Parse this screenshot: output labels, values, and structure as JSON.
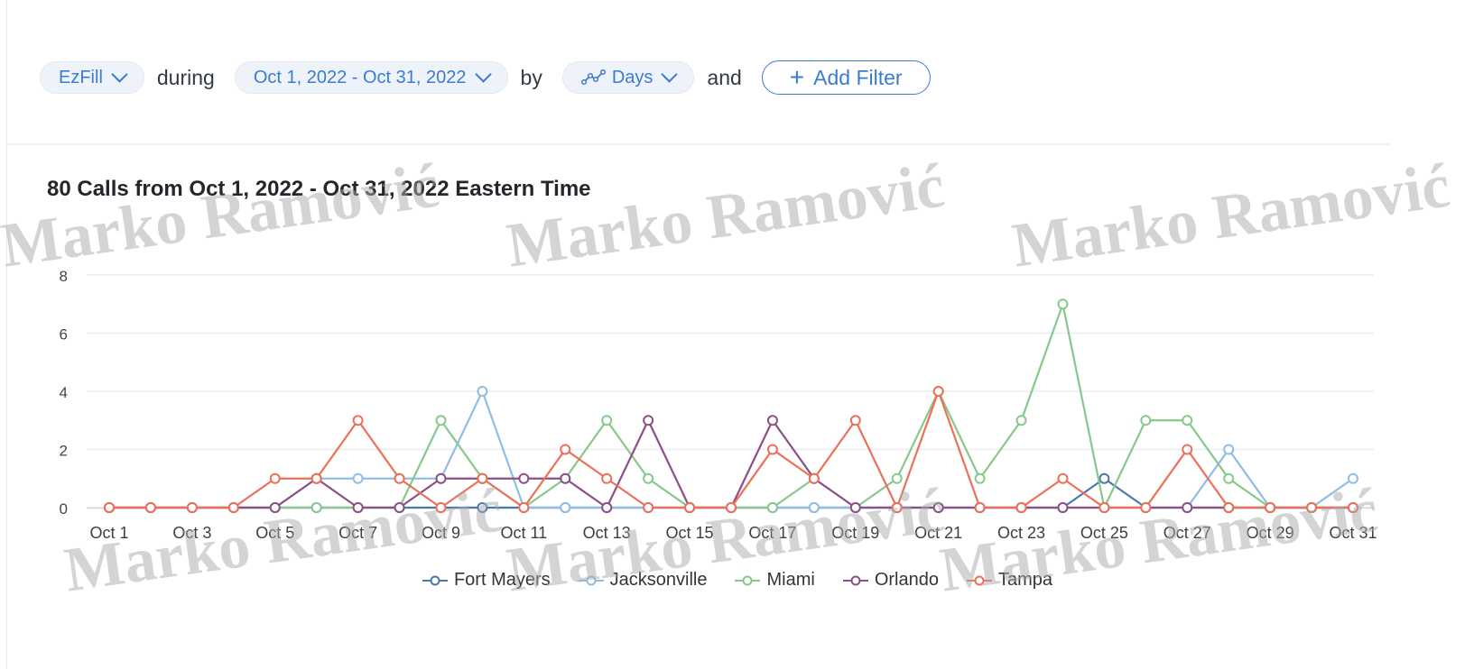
{
  "filters": {
    "product": "EzFill",
    "during_label": "during",
    "date_range": "Oct 1, 2022 - Oct 31, 2022",
    "by_label": "by",
    "granularity": "Days",
    "and_label": "and",
    "add_filter": "Add Filter"
  },
  "watermark": "Marko Ramović",
  "colors": {
    "accent": "#3b7bd1",
    "Fort Mayers": "#4a78ad",
    "Jacksonville": "#8fbde6",
    "Miami": "#86c98b",
    "Orlando": "#8c4f86",
    "Tampa": "#ec7058"
  },
  "chart_data": {
    "type": "line",
    "title": "80 Calls from Oct 1, 2022 - Oct 31, 2022 Eastern Time",
    "x": [
      "Oct 1",
      "Oct 2",
      "Oct 3",
      "Oct 4",
      "Oct 5",
      "Oct 6",
      "Oct 7",
      "Oct 8",
      "Oct 9",
      "Oct 10",
      "Oct 11",
      "Oct 12",
      "Oct 13",
      "Oct 14",
      "Oct 15",
      "Oct 16",
      "Oct 17",
      "Oct 18",
      "Oct 19",
      "Oct 20",
      "Oct 21",
      "Oct 22",
      "Oct 23",
      "Oct 24",
      "Oct 25",
      "Oct 26",
      "Oct 27",
      "Oct 28",
      "Oct 29",
      "Oct 30",
      "Oct 31"
    ],
    "x_tick_labels": [
      "Oct 1",
      "Oct 3",
      "Oct 5",
      "Oct 7",
      "Oct 9",
      "Oct 11",
      "Oct 13",
      "Oct 15",
      "Oct 17",
      "Oct 19",
      "Oct 21",
      "Oct 23",
      "Oct 25",
      "Oct 27",
      "Oct 29",
      "Oct 31"
    ],
    "ylim": [
      0,
      8
    ],
    "y_ticks": [
      0,
      2,
      4,
      6,
      8
    ],
    "grid": true,
    "legend": "bottom",
    "series": [
      {
        "name": "Fort Mayers",
        "values": [
          0,
          0,
          0,
          0,
          0,
          0,
          0,
          0,
          0,
          0,
          0,
          0,
          0,
          0,
          0,
          0,
          0,
          0,
          0,
          0,
          0,
          0,
          0,
          0,
          1,
          0,
          0,
          0,
          0,
          0,
          0
        ]
      },
      {
        "name": "Jacksonville",
        "values": [
          0,
          0,
          0,
          0,
          0,
          1,
          1,
          1,
          1,
          4,
          0,
          0,
          0,
          0,
          0,
          0,
          0,
          0,
          0,
          0,
          0,
          0,
          0,
          0,
          0,
          0,
          0,
          2,
          0,
          0,
          1
        ]
      },
      {
        "name": "Miami",
        "values": [
          0,
          0,
          0,
          0,
          0,
          0,
          0,
          0,
          3,
          1,
          0,
          1,
          3,
          1,
          0,
          0,
          0,
          1,
          0,
          1,
          4,
          1,
          3,
          7,
          0,
          3,
          3,
          1,
          0,
          0,
          0
        ]
      },
      {
        "name": "Orlando",
        "values": [
          0,
          0,
          0,
          0,
          0,
          1,
          0,
          0,
          1,
          1,
          1,
          1,
          0,
          3,
          0,
          0,
          3,
          1,
          0,
          0,
          0,
          0,
          0,
          0,
          0,
          0,
          0,
          0,
          0,
          0,
          0
        ]
      },
      {
        "name": "Tampa",
        "values": [
          0,
          0,
          0,
          0,
          1,
          1,
          3,
          1,
          0,
          1,
          0,
          2,
          1,
          0,
          0,
          0,
          2,
          1,
          3,
          0,
          4,
          0,
          0,
          1,
          0,
          0,
          2,
          0,
          0,
          0,
          0
        ]
      }
    ]
  }
}
